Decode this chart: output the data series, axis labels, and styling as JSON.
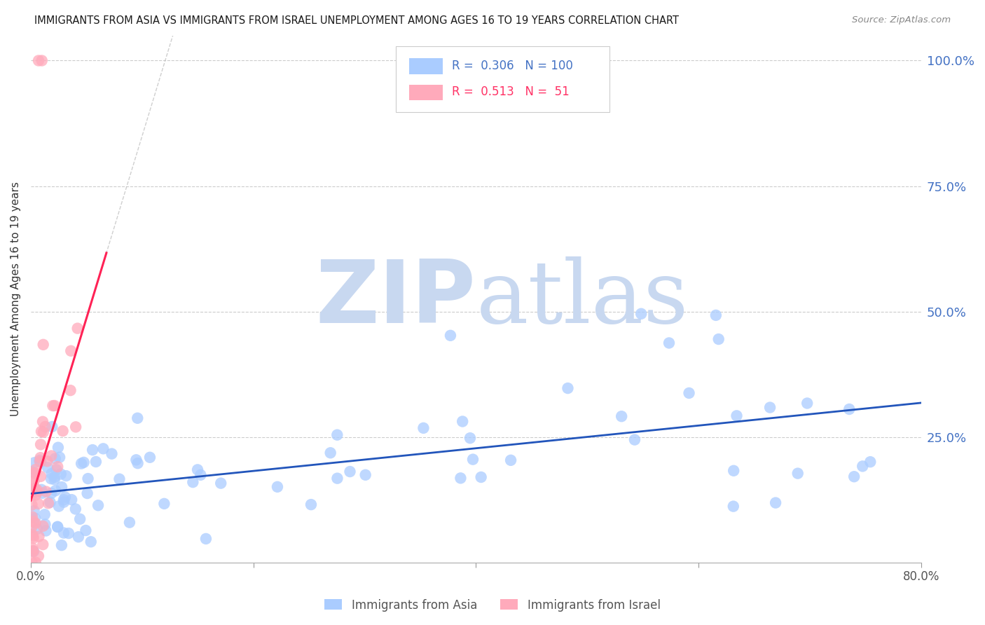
{
  "title": "IMMIGRANTS FROM ASIA VS IMMIGRANTS FROM ISRAEL UNEMPLOYMENT AMONG AGES 16 TO 19 YEARS CORRELATION CHART",
  "source": "Source: ZipAtlas.com",
  "ylabel": "Unemployment Among Ages 16 to 19 years",
  "xlim": [
    0.0,
    0.8
  ],
  "ylim": [
    0.0,
    1.05
  ],
  "xticks": [
    0.0,
    0.2,
    0.4,
    0.6,
    0.8
  ],
  "xticklabels": [
    "0.0%",
    "",
    "",
    "",
    "80.0%"
  ],
  "yticks_right": [
    0.25,
    0.5,
    0.75,
    1.0
  ],
  "yticklabels_right": [
    "25.0%",
    "50.0%",
    "75.0%",
    "100.0%"
  ],
  "grid_color": "#cccccc",
  "background_color": "#ffffff",
  "asia_color": "#aaccff",
  "israel_color": "#ffaabb",
  "asia_line_color": "#2255bb",
  "israel_line_color": "#ff2255",
  "asia_R": 0.306,
  "asia_N": 100,
  "israel_R": 0.513,
  "israel_N": 51,
  "watermark_zip": "ZIP",
  "watermark_atlas": "atlas",
  "watermark_color": "#c8d8f0"
}
